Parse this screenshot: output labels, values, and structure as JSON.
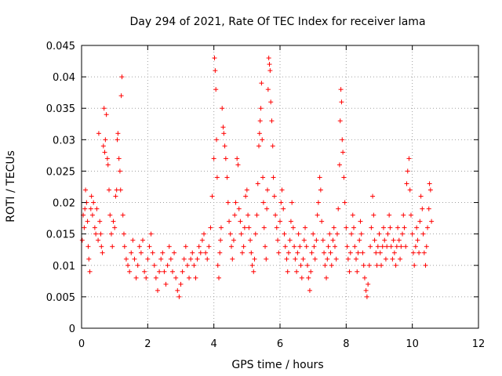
{
  "chart_data": {
    "type": "scatter",
    "title": "Day 294 of 2021, Rate Of TEC Index for receiver lama",
    "xlabel": "GPS time / hours",
    "ylabel": "ROTI / TECUs",
    "xlim": [
      0,
      12
    ],
    "ylim": [
      0,
      0.045
    ],
    "xticks": [
      0,
      2,
      4,
      6,
      8,
      10,
      12
    ],
    "xtick_labels": [
      "0",
      "2",
      "4",
      "6",
      "8",
      "10",
      "12"
    ],
    "yticks": [
      0,
      0.005,
      0.01,
      0.015,
      0.02,
      0.025,
      0.03,
      0.035,
      0.04,
      0.045
    ],
    "ytick_labels": [
      "0",
      "0.005",
      "0.01",
      "0.015",
      "0.02",
      "0.025",
      "0.03",
      "0.035",
      "0.04",
      "0.045"
    ],
    "grid": true,
    "marker": "+",
    "series": [
      {
        "name": "ROTI",
        "color": "#ff0000",
        "points": [
          [
            0.02,
            0.014
          ],
          [
            0.05,
            0.018
          ],
          [
            0.08,
            0.016
          ],
          [
            0.1,
            0.019
          ],
          [
            0.12,
            0.022
          ],
          [
            0.15,
            0.02
          ],
          [
            0.18,
            0.017
          ],
          [
            0.2,
            0.013
          ],
          [
            0.22,
            0.011
          ],
          [
            0.25,
            0.009
          ],
          [
            0.28,
            0.019
          ],
          [
            0.3,
            0.021
          ],
          [
            0.33,
            0.018
          ],
          [
            0.36,
            0.02
          ],
          [
            0.4,
            0.016
          ],
          [
            0.43,
            0.015
          ],
          [
            0.46,
            0.019
          ],
          [
            0.5,
            0.014
          ],
          [
            0.52,
            0.031
          ],
          [
            0.55,
            0.017
          ],
          [
            0.58,
            0.015
          ],
          [
            0.6,
            0.013
          ],
          [
            0.63,
            0.012
          ],
          [
            0.66,
            0.029
          ],
          [
            0.68,
            0.035
          ],
          [
            0.7,
            0.028
          ],
          [
            0.72,
            0.03
          ],
          [
            0.75,
            0.034
          ],
          [
            0.78,
            0.027
          ],
          [
            0.8,
            0.026
          ],
          [
            0.83,
            0.022
          ],
          [
            0.86,
            0.018
          ],
          [
            0.9,
            0.015
          ],
          [
            0.93,
            0.013
          ],
          [
            0.96,
            0.017
          ],
          [
            1.0,
            0.016
          ],
          [
            1.03,
            0.021
          ],
          [
            1.06,
            0.022
          ],
          [
            1.08,
            0.03
          ],
          [
            1.1,
            0.031
          ],
          [
            1.13,
            0.027
          ],
          [
            1.16,
            0.025
          ],
          [
            1.18,
            0.022
          ],
          [
            1.2,
            0.037
          ],
          [
            1.22,
            0.04
          ],
          [
            1.25,
            0.018
          ],
          [
            1.28,
            0.015
          ],
          [
            1.3,
            0.013
          ],
          [
            1.35,
            0.011
          ],
          [
            1.4,
            0.01
          ],
          [
            1.45,
            0.009
          ],
          [
            1.5,
            0.012
          ],
          [
            1.55,
            0.014
          ],
          [
            1.6,
            0.011
          ],
          [
            1.65,
            0.008
          ],
          [
            1.7,
            0.01
          ],
          [
            1.75,
            0.013
          ],
          [
            1.8,
            0.012
          ],
          [
            1.85,
            0.014
          ],
          [
            1.9,
            0.009
          ],
          [
            1.95,
            0.008
          ],
          [
            2.0,
            0.011
          ],
          [
            2.05,
            0.013
          ],
          [
            2.1,
            0.015
          ],
          [
            2.15,
            0.012
          ],
          [
            2.2,
            0.01
          ],
          [
            2.25,
            0.008
          ],
          [
            2.3,
            0.006
          ],
          [
            2.35,
            0.009
          ],
          [
            2.4,
            0.011
          ],
          [
            2.45,
            0.012
          ],
          [
            2.5,
            0.009
          ],
          [
            2.55,
            0.007
          ],
          [
            2.6,
            0.01
          ],
          [
            2.65,
            0.013
          ],
          [
            2.7,
            0.011
          ],
          [
            2.75,
            0.009
          ],
          [
            2.8,
            0.012
          ],
          [
            2.85,
            0.008
          ],
          [
            2.9,
            0.006
          ],
          [
            2.95,
            0.005
          ],
          [
            3.0,
            0.007
          ],
          [
            3.05,
            0.009
          ],
          [
            3.1,
            0.011
          ],
          [
            3.15,
            0.013
          ],
          [
            3.2,
            0.01
          ],
          [
            3.25,
            0.008
          ],
          [
            3.3,
            0.011
          ],
          [
            3.35,
            0.012
          ],
          [
            3.4,
            0.01
          ],
          [
            3.45,
            0.008
          ],
          [
            3.5,
            0.011
          ],
          [
            3.55,
            0.013
          ],
          [
            3.6,
            0.012
          ],
          [
            3.65,
            0.014
          ],
          [
            3.7,
            0.015
          ],
          [
            3.75,
            0.012
          ],
          [
            3.8,
            0.011
          ],
          [
            3.85,
            0.013
          ],
          [
            3.9,
            0.016
          ],
          [
            3.95,
            0.021
          ],
          [
            4.0,
            0.027
          ],
          [
            4.02,
            0.043
          ],
          [
            4.04,
            0.041
          ],
          [
            4.06,
            0.038
          ],
          [
            4.08,
            0.03
          ],
          [
            4.1,
            0.024
          ],
          [
            4.12,
            0.01
          ],
          [
            4.15,
            0.008
          ],
          [
            4.18,
            0.012
          ],
          [
            4.2,
            0.014
          ],
          [
            4.22,
            0.016
          ],
          [
            4.25,
            0.035
          ],
          [
            4.28,
            0.032
          ],
          [
            4.3,
            0.031
          ],
          [
            4.33,
            0.029
          ],
          [
            4.36,
            0.027
          ],
          [
            4.4,
            0.024
          ],
          [
            4.43,
            0.02
          ],
          [
            4.46,
            0.017
          ],
          [
            4.5,
            0.015
          ],
          [
            4.53,
            0.013
          ],
          [
            4.56,
            0.011
          ],
          [
            4.6,
            0.014
          ],
          [
            4.63,
            0.018
          ],
          [
            4.66,
            0.02
          ],
          [
            4.7,
            0.027
          ],
          [
            4.73,
            0.026
          ],
          [
            4.76,
            0.019
          ],
          [
            4.8,
            0.017
          ],
          [
            4.83,
            0.015
          ],
          [
            4.86,
            0.012
          ],
          [
            4.9,
            0.013
          ],
          [
            4.93,
            0.016
          ],
          [
            4.96,
            0.021
          ],
          [
            5.0,
            0.022
          ],
          [
            5.03,
            0.018
          ],
          [
            5.06,
            0.016
          ],
          [
            5.1,
            0.014
          ],
          [
            5.13,
            0.012
          ],
          [
            5.16,
            0.01
          ],
          [
            5.2,
            0.009
          ],
          [
            5.23,
            0.011
          ],
          [
            5.26,
            0.015
          ],
          [
            5.3,
            0.018
          ],
          [
            5.33,
            0.023
          ],
          [
            5.36,
            0.029
          ],
          [
            5.38,
            0.031
          ],
          [
            5.4,
            0.033
          ],
          [
            5.42,
            0.035
          ],
          [
            5.44,
            0.039
          ],
          [
            5.46,
            0.03
          ],
          [
            5.48,
            0.024
          ],
          [
            5.5,
            0.02
          ],
          [
            5.52,
            0.016
          ],
          [
            5.55,
            0.013
          ],
          [
            5.58,
            0.011
          ],
          [
            5.6,
            0.019
          ],
          [
            5.62,
            0.022
          ],
          [
            5.64,
            0.038
          ],
          [
            5.66,
            0.043
          ],
          [
            5.68,
            0.042
          ],
          [
            5.7,
            0.041
          ],
          [
            5.72,
            0.036
          ],
          [
            5.75,
            0.033
          ],
          [
            5.78,
            0.029
          ],
          [
            5.8,
            0.024
          ],
          [
            5.83,
            0.021
          ],
          [
            5.86,
            0.018
          ],
          [
            5.9,
            0.016
          ],
          [
            5.93,
            0.014
          ],
          [
            5.96,
            0.012
          ],
          [
            6.0,
            0.017
          ],
          [
            6.03,
            0.02
          ],
          [
            6.06,
            0.022
          ],
          [
            6.1,
            0.019
          ],
          [
            6.13,
            0.015
          ],
          [
            6.16,
            0.013
          ],
          [
            6.2,
            0.011
          ],
          [
            6.23,
            0.009
          ],
          [
            6.26,
            0.012
          ],
          [
            6.3,
            0.014
          ],
          [
            6.33,
            0.017
          ],
          [
            6.36,
            0.02
          ],
          [
            6.4,
            0.016
          ],
          [
            6.43,
            0.013
          ],
          [
            6.46,
            0.011
          ],
          [
            6.5,
            0.009
          ],
          [
            6.53,
            0.012
          ],
          [
            6.56,
            0.015
          ],
          [
            6.6,
            0.013
          ],
          [
            6.63,
            0.01
          ],
          [
            6.66,
            0.008
          ],
          [
            6.7,
            0.011
          ],
          [
            6.73,
            0.014
          ],
          [
            6.76,
            0.016
          ],
          [
            6.8,
            0.013
          ],
          [
            6.83,
            0.01
          ],
          [
            6.86,
            0.008
          ],
          [
            6.9,
            0.006
          ],
          [
            6.93,
            0.009
          ],
          [
            6.96,
            0.012
          ],
          [
            7.0,
            0.015
          ],
          [
            7.03,
            0.013
          ],
          [
            7.06,
            0.011
          ],
          [
            7.1,
            0.014
          ],
          [
            7.13,
            0.018
          ],
          [
            7.16,
            0.02
          ],
          [
            7.2,
            0.024
          ],
          [
            7.23,
            0.022
          ],
          [
            7.26,
            0.017
          ],
          [
            7.3,
            0.014
          ],
          [
            7.33,
            0.012
          ],
          [
            7.36,
            0.01
          ],
          [
            7.4,
            0.008
          ],
          [
            7.43,
            0.011
          ],
          [
            7.46,
            0.013
          ],
          [
            7.5,
            0.015
          ],
          [
            7.53,
            0.012
          ],
          [
            7.56,
            0.01
          ],
          [
            7.6,
            0.014
          ],
          [
            7.63,
            0.016
          ],
          [
            7.66,
            0.013
          ],
          [
            7.7,
            0.011
          ],
          [
            7.73,
            0.015
          ],
          [
            7.76,
            0.019
          ],
          [
            7.8,
            0.026
          ],
          [
            7.82,
            0.033
          ],
          [
            7.84,
            0.038
          ],
          [
            7.86,
            0.036
          ],
          [
            7.88,
            0.03
          ],
          [
            7.9,
            0.028
          ],
          [
            7.93,
            0.024
          ],
          [
            7.96,
            0.02
          ],
          [
            8.0,
            0.016
          ],
          [
            8.03,
            0.013
          ],
          [
            8.06,
            0.011
          ],
          [
            8.1,
            0.009
          ],
          [
            8.13,
            0.012
          ],
          [
            8.16,
            0.015
          ],
          [
            8.2,
            0.018
          ],
          [
            8.23,
            0.016
          ],
          [
            8.26,
            0.013
          ],
          [
            8.3,
            0.011
          ],
          [
            8.33,
            0.009
          ],
          [
            8.36,
            0.012
          ],
          [
            8.4,
            0.014
          ],
          [
            8.43,
            0.017
          ],
          [
            8.46,
            0.015
          ],
          [
            8.5,
            0.012
          ],
          [
            8.53,
            0.01
          ],
          [
            8.56,
            0.008
          ],
          [
            8.6,
            0.006
          ],
          [
            8.63,
            0.005
          ],
          [
            8.66,
            0.007
          ],
          [
            8.7,
            0.01
          ],
          [
            8.73,
            0.013
          ],
          [
            8.76,
            0.016
          ],
          [
            8.8,
            0.021
          ],
          [
            8.83,
            0.018
          ],
          [
            8.86,
            0.014
          ],
          [
            8.9,
            0.012
          ],
          [
            8.93,
            0.01
          ],
          [
            8.96,
            0.013
          ],
          [
            9.0,
            0.015
          ],
          [
            9.03,
            0.012
          ],
          [
            9.06,
            0.01
          ],
          [
            9.1,
            0.013
          ],
          [
            9.13,
            0.016
          ],
          [
            9.16,
            0.014
          ],
          [
            9.2,
            0.011
          ],
          [
            9.23,
            0.013
          ],
          [
            9.26,
            0.015
          ],
          [
            9.3,
            0.018
          ],
          [
            9.33,
            0.016
          ],
          [
            9.36,
            0.013
          ],
          [
            9.4,
            0.011
          ],
          [
            9.43,
            0.014
          ],
          [
            9.46,
            0.012
          ],
          [
            9.5,
            0.01
          ],
          [
            9.53,
            0.013
          ],
          [
            9.56,
            0.016
          ],
          [
            9.6,
            0.014
          ],
          [
            9.63,
            0.011
          ],
          [
            9.66,
            0.013
          ],
          [
            9.7,
            0.015
          ],
          [
            9.73,
            0.018
          ],
          [
            9.76,
            0.016
          ],
          [
            9.8,
            0.013
          ],
          [
            9.83,
            0.023
          ],
          [
            9.86,
            0.025
          ],
          [
            9.9,
            0.027
          ],
          [
            9.93,
            0.022
          ],
          [
            9.96,
            0.018
          ],
          [
            10.0,
            0.015
          ],
          [
            10.03,
            0.012
          ],
          [
            10.06,
            0.01
          ],
          [
            10.1,
            0.013
          ],
          [
            10.13,
            0.016
          ],
          [
            10.16,
            0.014
          ],
          [
            10.2,
            0.012
          ],
          [
            10.23,
            0.017
          ],
          [
            10.26,
            0.021
          ],
          [
            10.3,
            0.019
          ],
          [
            10.33,
            0.015
          ],
          [
            10.36,
            0.012
          ],
          [
            10.4,
            0.01
          ],
          [
            10.43,
            0.013
          ],
          [
            10.46,
            0.016
          ],
          [
            10.5,
            0.019
          ],
          [
            10.52,
            0.023
          ],
          [
            10.55,
            0.022
          ],
          [
            10.58,
            0.017
          ]
        ]
      }
    ]
  }
}
